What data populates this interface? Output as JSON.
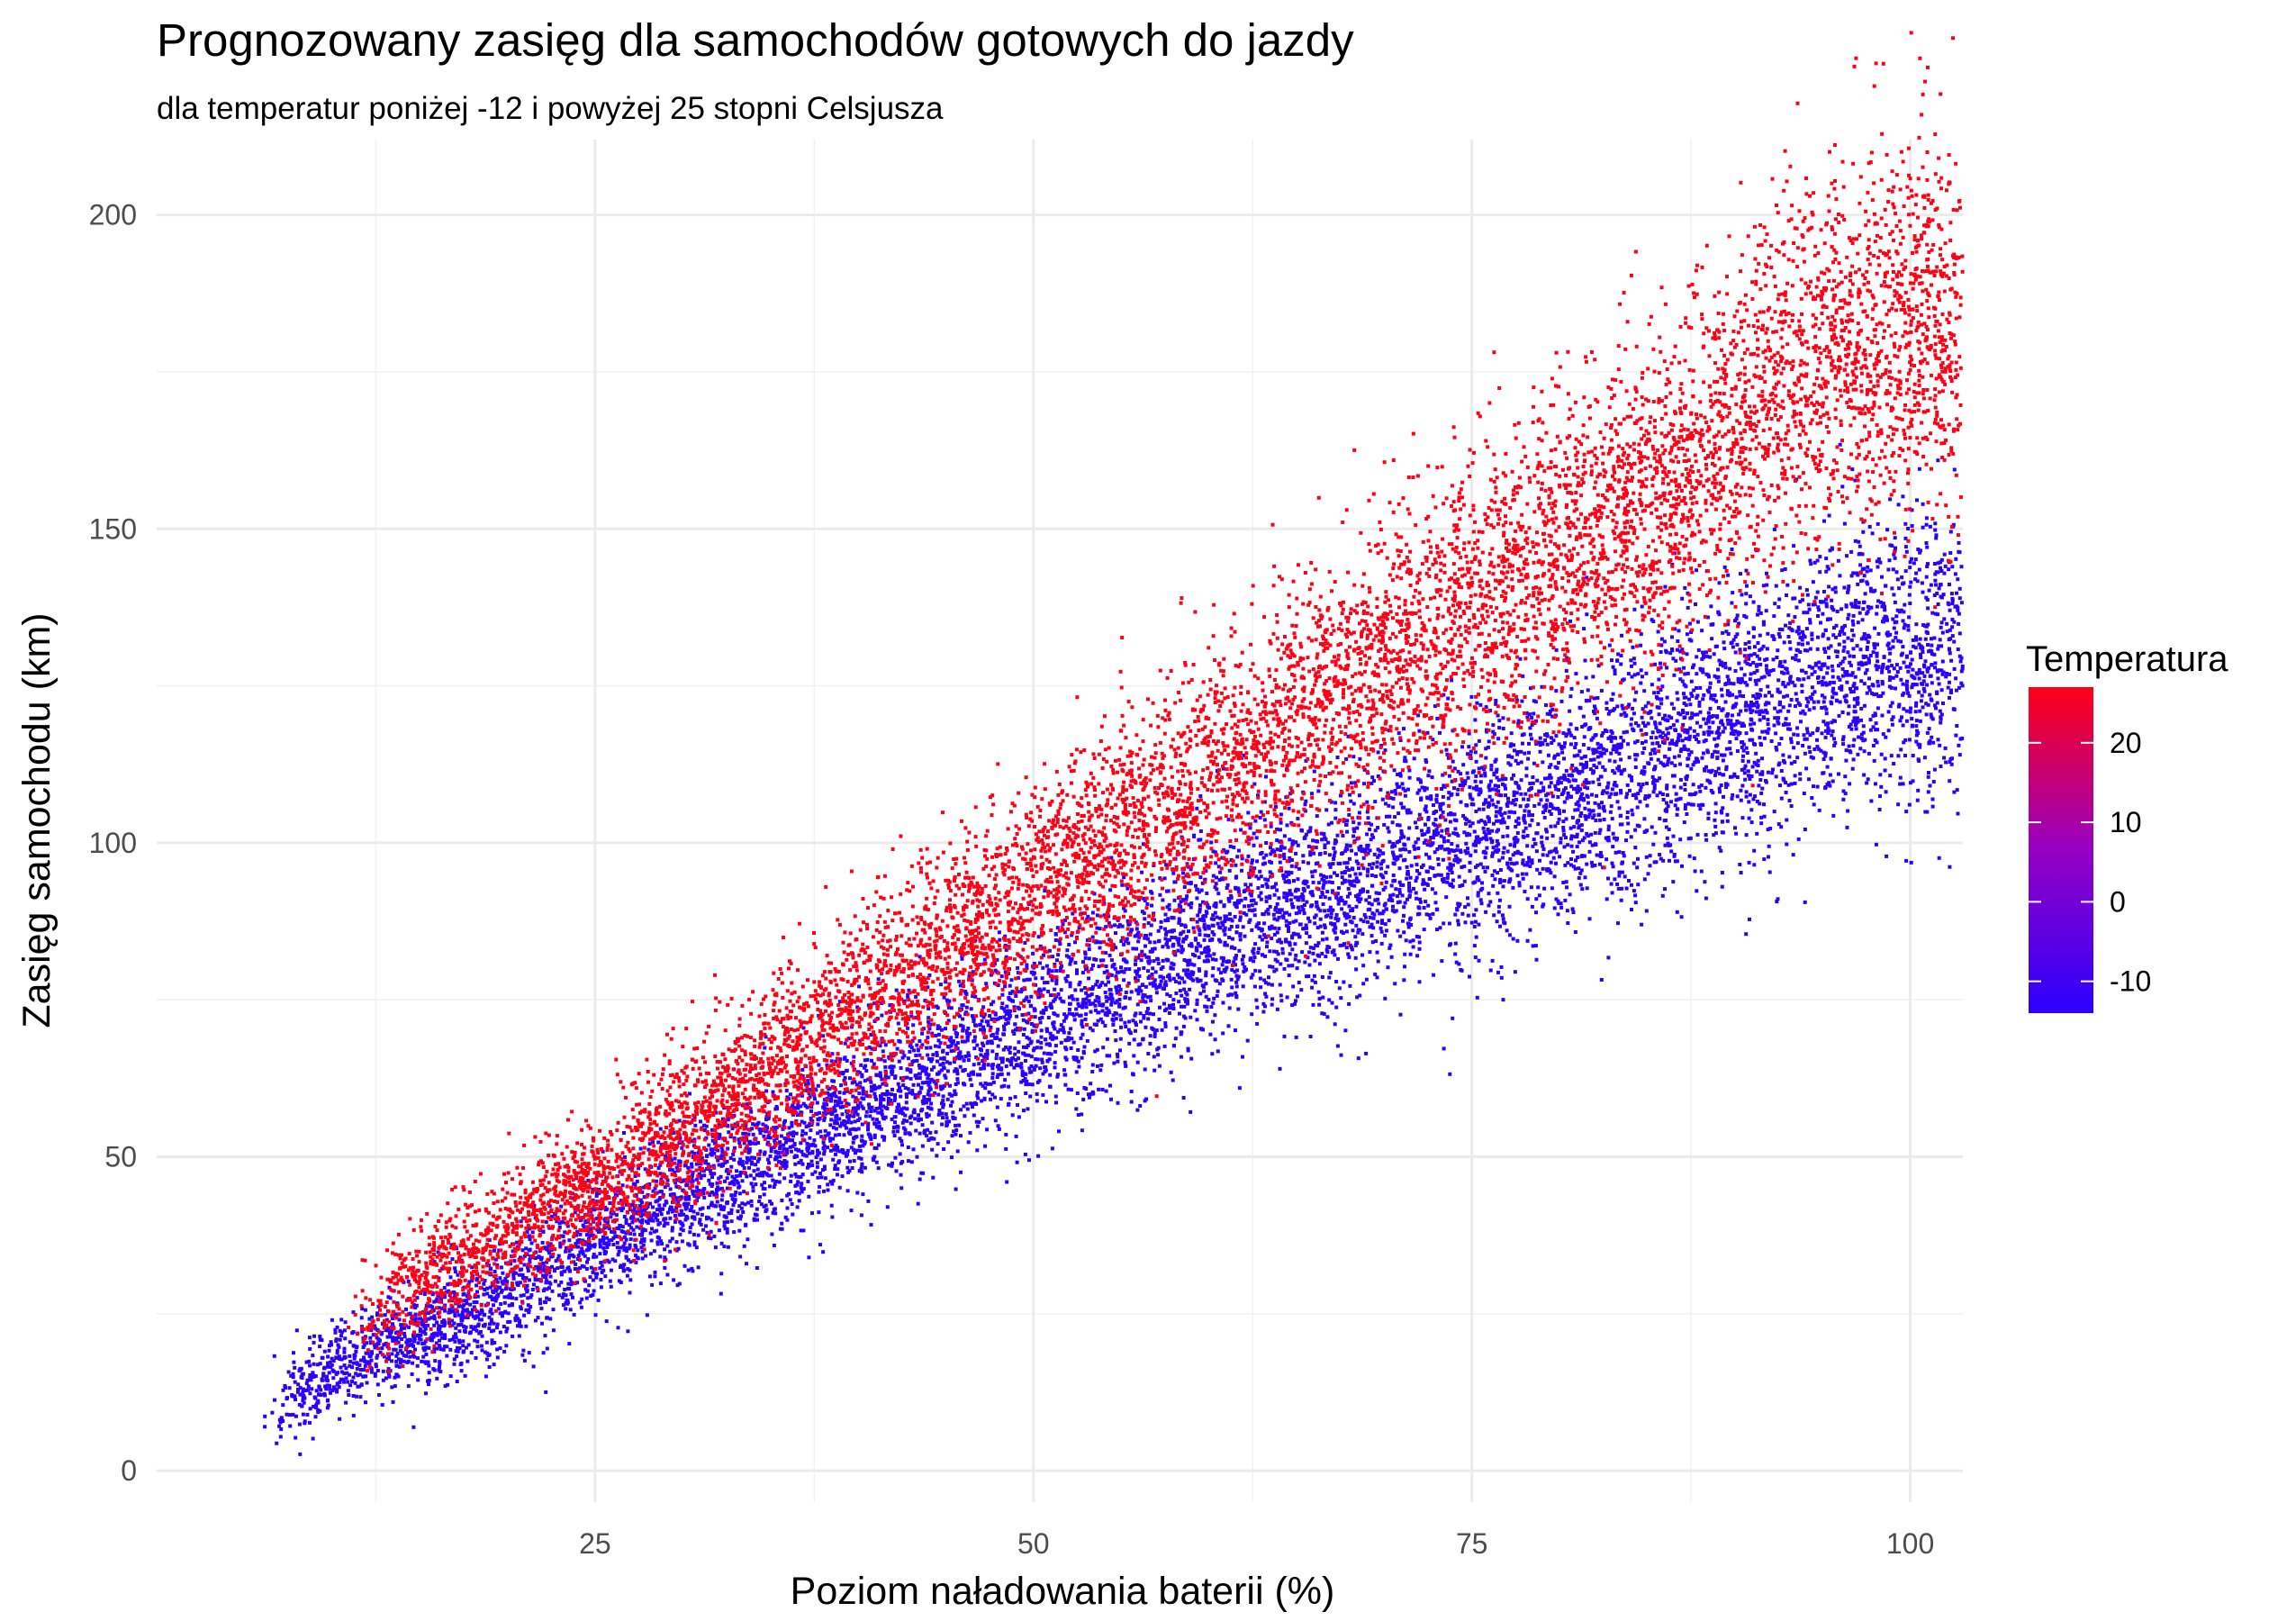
{
  "chart_data": {
    "type": "scatter",
    "title": "Prognozowany zasięg dla samochodów gotowych do jazdy",
    "subtitle": "dla temperatur poniżej -12 i powyżej 25 stopni Celsjusza",
    "xlabel": "Poziom naładowania baterii (%)",
    "ylabel": "Zasięg samochodu (km)",
    "xlim": [
      0,
      103
    ],
    "ylim": [
      -5,
      212
    ],
    "x_ticks": [
      25,
      50,
      75,
      100
    ],
    "y_ticks": [
      0,
      50,
      100,
      150,
      200
    ],
    "grid": true,
    "legend": {
      "title": "Temperatura",
      "placement": "right",
      "ticks": [
        20,
        10,
        0,
        -10
      ],
      "range": [
        -14,
        27
      ],
      "low_color": "#2B00FF",
      "high_color": "#FF0015"
    },
    "series": [
      {
        "temperature": -13,
        "color": "#2B00FF",
        "approx_points": 9000,
        "x_range": [
          5,
          103
        ],
        "trend": [
          [
            5,
            6
          ],
          [
            10,
            16
          ],
          [
            15,
            22
          ],
          [
            20,
            28
          ],
          [
            25,
            36
          ],
          [
            30,
            44
          ],
          [
            35,
            50
          ],
          [
            40,
            57
          ],
          [
            45,
            64
          ],
          [
            50,
            71
          ],
          [
            55,
            78
          ],
          [
            60,
            85
          ],
          [
            65,
            90
          ],
          [
            70,
            96
          ],
          [
            75,
            101
          ],
          [
            80,
            107
          ],
          [
            85,
            113
          ],
          [
            90,
            120
          ],
          [
            95,
            127
          ],
          [
            100,
            130
          ]
        ]
      },
      {
        "temperature": 26,
        "color": "#FF0015",
        "approx_points": 9000,
        "x_range": [
          10,
          103
        ],
        "trend": [
          [
            10,
            22
          ],
          [
            15,
            30
          ],
          [
            20,
            38
          ],
          [
            25,
            45
          ],
          [
            30,
            55
          ],
          [
            35,
            64
          ],
          [
            40,
            74
          ],
          [
            45,
            83
          ],
          [
            50,
            92
          ],
          [
            55,
            101
          ],
          [
            60,
            110
          ],
          [
            65,
            120
          ],
          [
            70,
            128
          ],
          [
            75,
            137
          ],
          [
            80,
            145
          ],
          [
            85,
            154
          ],
          [
            90,
            165
          ],
          [
            95,
            178
          ],
          [
            100,
            182
          ]
        ]
      }
    ]
  }
}
